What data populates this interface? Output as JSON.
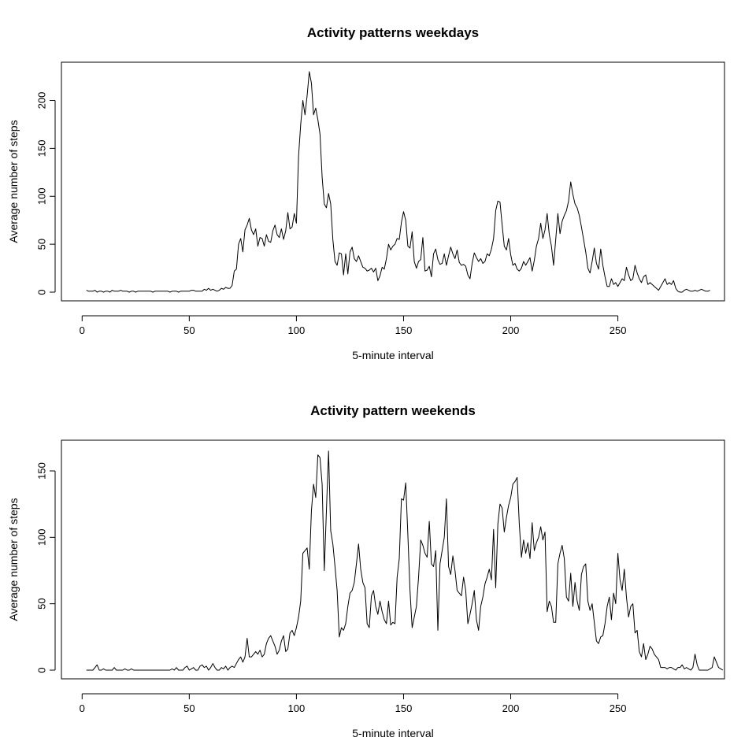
{
  "chart_data": [
    {
      "type": "line",
      "title": "Activity patterns weekdays",
      "xlabel": "5-minute interval",
      "ylabel": "Average number of steps",
      "xlim": [
        1,
        288
      ],
      "ylim": [
        0,
        230
      ],
      "x_ticks": [
        0,
        50,
        100,
        150,
        200,
        250
      ],
      "y_ticks": [
        0,
        50,
        100,
        150,
        200
      ],
      "grid": false,
      "series": [
        {
          "x_start": 2,
          "x_step": 1,
          "values": [
            2,
            1,
            1,
            1,
            2,
            0,
            1,
            1,
            0,
            1,
            1,
            0,
            2,
            1,
            1,
            1,
            2,
            1,
            1,
            1,
            0,
            1,
            1,
            0,
            1,
            1,
            1,
            1,
            1,
            1,
            1,
            0,
            1,
            1,
            1,
            1,
            1,
            1,
            1,
            0,
            1,
            1,
            1,
            0,
            1,
            1,
            1,
            1,
            1,
            2,
            2,
            1,
            1,
            1,
            1,
            3,
            2,
            4,
            2,
            3,
            2,
            1,
            2,
            4,
            3,
            5,
            4,
            4,
            7,
            22,
            24,
            50,
            56,
            42,
            65,
            70,
            77,
            65,
            60,
            66,
            48,
            57,
            56,
            48,
            60,
            53,
            52,
            64,
            70,
            60,
            57,
            66,
            55,
            64,
            83,
            66,
            68,
            82,
            72,
            142,
            175,
            200,
            185,
            205,
            230,
            218,
            185,
            192,
            180,
            165,
            120,
            92,
            88,
            103,
            92,
            55,
            32,
            28,
            41,
            40,
            18,
            40,
            19,
            42,
            47,
            35,
            32,
            38,
            32,
            26,
            25,
            22,
            23,
            25,
            21,
            25,
            12,
            17,
            26,
            24,
            35,
            50,
            44,
            48,
            50,
            56,
            55,
            73,
            84,
            75,
            48,
            46,
            63,
            32,
            25,
            32,
            34,
            57,
            22,
            23,
            27,
            16,
            40,
            45,
            34,
            29,
            30,
            40,
            28,
            38,
            47,
            40,
            35,
            44,
            31,
            28,
            29,
            27,
            18,
            14,
            30,
            41,
            36,
            32,
            35,
            30,
            32,
            40,
            38,
            45,
            56,
            85,
            95,
            94,
            70,
            48,
            44,
            56,
            39,
            28,
            30,
            24,
            22,
            25,
            32,
            28,
            32,
            36,
            22,
            33,
            48,
            56,
            72,
            56,
            65,
            82,
            60,
            48,
            28,
            55,
            82,
            61,
            74,
            80,
            85,
            95,
            115,
            102,
            92,
            88,
            80,
            68,
            55,
            42,
            25,
            20,
            32,
            46,
            30,
            24,
            45,
            28,
            16,
            6,
            6,
            14,
            8,
            10,
            6,
            10,
            14,
            12,
            26,
            18,
            12,
            14,
            28,
            20,
            14,
            10,
            16,
            18,
            8,
            10,
            8,
            6,
            4,
            2,
            6,
            10,
            14,
            8,
            10,
            8,
            12,
            4,
            1,
            0,
            0,
            2,
            3,
            2,
            1,
            1,
            2,
            1,
            2,
            3,
            2,
            1,
            1,
            2
          ]
        }
      ]
    },
    {
      "type": "line",
      "title": "Activity pattern weekends",
      "xlabel": "5-minute interval",
      "ylabel": "Average number of steps",
      "xlim": [
        1,
        288
      ],
      "ylim": [
        0,
        166
      ],
      "x_ticks": [
        0,
        50,
        100,
        150,
        200,
        250
      ],
      "y_ticks": [
        0,
        50,
        100,
        150
      ],
      "grid": false,
      "series": [
        {
          "x_start": 2,
          "x_step": 1,
          "values": [
            0,
            0,
            0,
            0,
            2,
            4,
            0,
            0,
            1,
            0,
            0,
            0,
            0,
            2,
            0,
            0,
            0,
            0,
            1,
            0,
            0,
            1,
            0,
            0,
            0,
            0,
            0,
            0,
            0,
            0,
            0,
            0,
            0,
            0,
            0,
            0,
            0,
            0,
            0,
            0,
            1,
            0,
            2,
            0,
            0,
            0,
            2,
            3,
            0,
            1,
            2,
            0,
            0,
            3,
            4,
            2,
            3,
            0,
            2,
            5,
            2,
            0,
            0,
            2,
            1,
            3,
            0,
            2,
            3,
            2,
            5,
            8,
            10,
            6,
            10,
            24,
            10,
            10,
            12,
            14,
            12,
            15,
            10,
            12,
            20,
            24,
            26,
            22,
            18,
            12,
            15,
            22,
            26,
            14,
            16,
            28,
            30,
            26,
            32,
            40,
            52,
            88,
            90,
            92,
            76,
            120,
            140,
            130,
            162,
            160,
            140,
            75,
            120,
            165,
            105,
            95,
            78,
            60,
            25,
            32,
            30,
            35,
            48,
            58,
            60,
            66,
            80,
            95,
            76,
            66,
            62,
            35,
            32,
            56,
            60,
            48,
            42,
            52,
            44,
            38,
            35,
            52,
            34,
            36,
            35,
            70,
            84,
            129,
            128,
            141,
            102,
            60,
            32,
            40,
            48,
            70,
            98,
            94,
            88,
            85,
            112,
            80,
            78,
            90,
            30,
            80,
            90,
            100,
            129,
            78,
            72,
            86,
            75,
            60,
            58,
            56,
            70,
            60,
            35,
            42,
            50,
            60,
            38,
            30,
            48,
            55,
            65,
            70,
            76,
            68,
            106,
            62,
            110,
            125,
            122,
            104,
            115,
            124,
            130,
            140,
            142,
            145,
            110,
            85,
            98,
            88,
            96,
            84,
            111,
            90,
            96,
            100,
            108,
            98,
            104,
            44,
            52,
            48,
            36,
            36,
            80,
            88,
            94,
            84,
            55,
            52,
            73,
            48,
            66,
            52,
            45,
            72,
            78,
            80,
            52,
            45,
            50,
            36,
            22,
            20,
            25,
            26,
            35,
            48,
            55,
            38,
            58,
            50,
            88,
            68,
            60,
            76,
            55,
            40,
            48,
            50,
            28,
            30,
            14,
            10,
            20,
            8,
            12,
            18,
            16,
            12,
            10,
            8,
            2,
            2,
            2,
            1,
            2,
            2,
            1,
            0,
            2,
            2,
            4,
            1,
            2,
            1,
            0,
            2,
            12,
            4,
            0,
            0,
            0,
            0,
            0,
            1,
            2,
            10,
            6,
            2,
            1,
            0
          ]
        }
      ]
    }
  ]
}
